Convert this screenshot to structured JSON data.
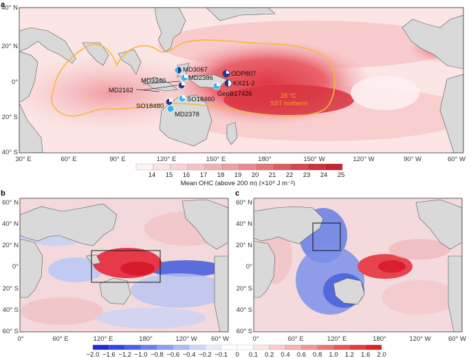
{
  "panels": {
    "a": {
      "letter": "a",
      "lat_ticks": [
        "40° N",
        "20° N",
        "0°",
        "20° S",
        "40° S"
      ],
      "lon_ticks": [
        "30° E",
        "60° E",
        "90° E",
        "120° E",
        "150° E",
        "180°",
        "150° W",
        "120° W",
        "90° W",
        "60° W"
      ],
      "isotherm_label_1": "28 °C",
      "isotherm_label_2": "SST isotherm",
      "sites": [
        "MD3067",
        "ODP807",
        "MD2386",
        "MD3340",
        "KX21-2",
        "MD2162",
        "GeoB17426",
        "SO18460",
        "SO18480",
        "MD2378"
      ],
      "colorbar": {
        "ticks": [
          "14",
          "15",
          "16",
          "17",
          "18",
          "19",
          "20",
          "21",
          "22",
          "23",
          "24",
          "25"
        ],
        "colors": [
          "#fdf3f3",
          "#fbe3e3",
          "#f8d3d4",
          "#f5c3c4",
          "#f2b2b4",
          "#ee9fa2",
          "#e98a8e",
          "#e3747a",
          "#dc5d64",
          "#d4484f",
          "#cc343d",
          "#c42530"
        ],
        "title": "Mean OHC (above 200 m) (×10⁹ J m⁻²)"
      }
    },
    "b": {
      "letter": "b",
      "lat_ticks": [
        "60° N",
        "40° N",
        "20° N",
        "0°",
        "20° S",
        "40° S",
        "60° S"
      ],
      "lon_ticks": [
        "0°",
        "60° E",
        "120° E",
        "180°",
        "120° W",
        "60° W"
      ]
    },
    "c": {
      "letter": "c",
      "lat_ticks": [
        "60° N",
        "40° N",
        "20° N",
        "0°",
        "20° S",
        "40° S",
        "60° S"
      ],
      "lon_ticks": [
        "0°",
        "60° E",
        "120° E",
        "180°",
        "120° W",
        "60° W"
      ]
    },
    "bottom_colorbar": {
      "ticks": [
        "−2.0",
        "−1.6",
        "−1.2",
        "−1.0",
        "−0.8",
        "−0.6",
        "−0.4",
        "−0.2",
        "−0.1",
        "0",
        "0.1",
        "0.2",
        "0.4",
        "0.6",
        "0.8",
        "1.0",
        "1.2",
        "1.6",
        "2.0"
      ],
      "colors": [
        "#1f2bd9",
        "#3146e0",
        "#4a60e6",
        "#6c80ec",
        "#8d9ff1",
        "#aebcf6",
        "#ccd6fa",
        "#e6ecfd",
        "#ffffff",
        "#ffffff",
        "#fde6e6",
        "#fbcccc",
        "#f8b0b0",
        "#f49393",
        "#ef7474",
        "#ea5656",
        "#e53b3b",
        "#df2020"
      ]
    }
  },
  "colors": {
    "land": "#d9d9d9",
    "ocean_base": "#fbe1e1",
    "isotherm": "#f5b83c",
    "warm_strong": "#e5444f",
    "cool_strong": "#3e56d6"
  }
}
